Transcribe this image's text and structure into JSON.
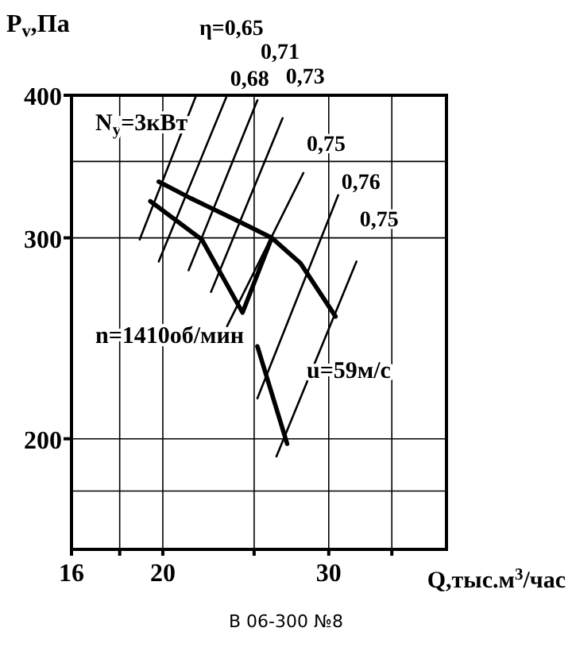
{
  "chart_data": {
    "type": "line",
    "ylabel": "P$_{v}$,Па",
    "xlabel": "Q,тыс.м$^{3}$/час",
    "log": "xy",
    "grid": true,
    "marker": "none",
    "line_style": "solid",
    "xlim": [
      16,
      40
    ],
    "xticks": [
      16,
      {
        "value": 18,
        "label": null
      },
      20,
      {
        "value": 25,
        "label": null
      },
      30,
      {
        "value": 35,
        "label": null
      }
    ],
    "ylim": [
      160,
      400
    ],
    "yticks": [
      {
        "value": 180,
        "label": null
      },
      200,
      300,
      {
        "value": 350,
        "label": null
      },
      400
    ],
    "series": [
      {
        "color": "#000000",
        "x": [
          19.8,
          21.4,
          24.1,
          26.1,
          28,
          30.5
        ],
        "values": [
          336,
          325,
          310,
          300,
          285,
          256
        ]
      },
      {
        "color": "#000000",
        "x": [
          19.4,
          22,
          24.3,
          26.1
        ],
        "values": [
          323,
          299,
          258,
          300
        ]
      },
      {
        "color": "#000000",
        "x": [
          25.2,
          27.1
        ],
        "values": [
          241,
          198
        ]
      },
      {
        "name": "η=0,65",
        "color": "#000000",
        "x": [
          18.9,
          21.7
        ],
        "values": [
          299,
          400
        ]
      },
      {
        "name": "0,68",
        "color": "#000000",
        "x": [
          19.8,
          23.4
        ],
        "values": [
          286,
          400
        ]
      },
      {
        "name": "0,71",
        "color": "#000000",
        "x": [
          21.3,
          25.2
        ],
        "values": [
          281,
          396
        ]
      },
      {
        "name": "0,73",
        "color": "#000000",
        "x": [
          22.5,
          26.8
        ],
        "values": [
          269,
          382
        ]
      },
      {
        "name": "0,75",
        "color": "#000000",
        "x": [
          23.4,
          28.2
        ],
        "values": [
          251,
          342
        ]
      },
      {
        "name": "0,76",
        "color": "#000000",
        "x": [
          25.2,
          30.7
        ],
        "values": [
          217,
          327
        ]
      },
      {
        "name": "0,75",
        "color": "#000000",
        "x": [
          26.4,
          32.1
        ],
        "values": [
          193,
          286
        ]
      }
    ],
    "annotations": [
      "N$_{y}$=3кВт",
      "n=1410об/мин",
      "u=59м/с",
      "В 06-300 №8"
    ]
  }
}
